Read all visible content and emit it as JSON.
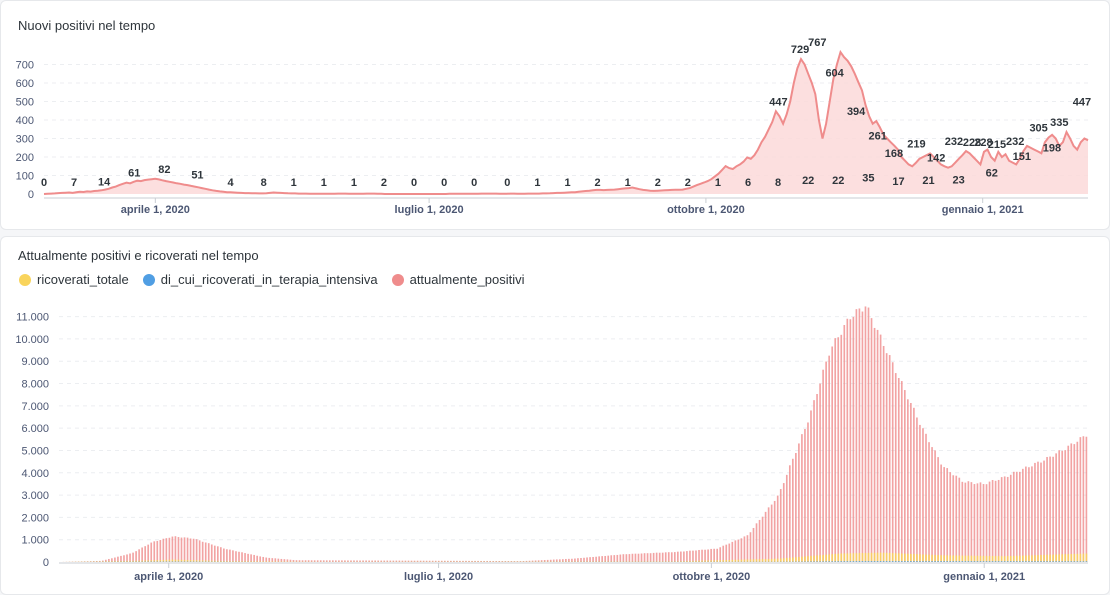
{
  "chart_data": [
    {
      "type": "area",
      "title": "Nuovi positivi nel tempo",
      "series": [
        {
          "name": "nuovi_positivi",
          "color": "#ef8c8c"
        }
      ],
      "y_ticks": [
        "0",
        "100",
        "200",
        "300",
        "400",
        "500",
        "600",
        "700"
      ],
      "ylim": [
        0,
        800
      ],
      "x_ticks": [
        "aprile 1, 2020",
        "luglio 1, 2020",
        "ottobre 1, 2020",
        "gennaio 1, 2021"
      ],
      "x_range": [
        "2020-02-24",
        "2021-02-05"
      ],
      "data_labels": [
        {
          "date": "2020-02-24",
          "value": 0
        },
        {
          "date": "2020-03-05",
          "value": 7
        },
        {
          "date": "2020-03-15",
          "value": 14
        },
        {
          "date": "2020-03-25",
          "value": 61
        },
        {
          "date": "2020-04-04",
          "value": 82
        },
        {
          "date": "2020-04-15",
          "value": 51
        },
        {
          "date": "2020-04-26",
          "value": 4
        },
        {
          "date": "2020-05-07",
          "value": 8
        },
        {
          "date": "2020-05-17",
          "value": 1
        },
        {
          "date": "2020-05-27",
          "value": 1
        },
        {
          "date": "2020-06-06",
          "value": 1
        },
        {
          "date": "2020-06-16",
          "value": 2
        },
        {
          "date": "2020-06-26",
          "value": 0
        },
        {
          "date": "2020-07-06",
          "value": 0
        },
        {
          "date": "2020-07-16",
          "value": 0
        },
        {
          "date": "2020-07-27",
          "value": 0
        },
        {
          "date": "2020-08-06",
          "value": 1
        },
        {
          "date": "2020-08-16",
          "value": 1
        },
        {
          "date": "2020-08-26",
          "value": 2
        },
        {
          "date": "2020-09-05",
          "value": 1
        },
        {
          "date": "2020-09-15",
          "value": 2
        },
        {
          "date": "2020-09-25",
          "value": 2
        },
        {
          "date": "2020-10-05",
          "value": 1
        },
        {
          "date": "2020-10-15",
          "value": 6
        },
        {
          "date": "2020-10-25",
          "value": 8
        },
        {
          "date": "2020-11-04",
          "value": 22
        },
        {
          "date": "2020-11-14",
          "value": 22
        },
        {
          "date": "2020-11-24",
          "value": 35
        },
        {
          "date": "2020-12-04",
          "value": 17
        },
        {
          "date": "2020-12-14",
          "value": 21
        },
        {
          "date": "2020-12-24",
          "value": 23
        },
        {
          "date": "2021-01-04",
          "value": 62
        },
        {
          "date": "2021-01-14",
          "value": 151
        },
        {
          "date": "2021-01-24",
          "value": 198
        },
        {
          "date": "2021-02-03",
          "value": 447
        }
      ],
      "peak_labels": [
        {
          "x_frac": 0.7035,
          "value": 447
        },
        {
          "x_frac": 0.7242,
          "value": 729
        },
        {
          "x_frac": 0.7407,
          "value": 767
        },
        {
          "x_frac": 0.7573,
          "value": 604
        },
        {
          "x_frac": 0.7779,
          "value": 394
        },
        {
          "x_frac": 0.7985,
          "value": 261
        },
        {
          "x_frac": 0.8141,
          "value": 168
        },
        {
          "x_frac": 0.8357,
          "value": 219
        },
        {
          "x_frac": 0.8546,
          "value": 142
        },
        {
          "x_frac": 0.8716,
          "value": 232
        },
        {
          "x_frac": 0.8889,
          "value": 228
        },
        {
          "x_frac": 0.8999,
          "value": 228
        },
        {
          "x_frac": 0.9128,
          "value": 215
        },
        {
          "x_frac": 0.9303,
          "value": 232
        },
        {
          "x_frac": 0.9527,
          "value": 305
        },
        {
          "x_frac": 0.9725,
          "value": 335
        }
      ],
      "values": [
        0,
        1,
        2,
        3,
        5,
        6,
        7,
        8,
        6,
        9,
        12,
        11,
        14,
        13,
        16,
        18,
        20,
        24,
        28,
        35,
        40,
        48,
        55,
        61,
        58,
        66,
        72,
        70,
        75,
        78,
        80,
        82,
        79,
        74,
        70,
        66,
        62,
        58,
        55,
        51,
        48,
        44,
        40,
        36,
        32,
        28,
        24,
        20,
        17,
        14,
        12,
        10,
        9,
        8,
        7,
        6,
        5,
        5,
        4,
        4,
        3,
        3,
        4,
        6,
        8,
        7,
        6,
        5,
        4,
        3,
        3,
        2,
        2,
        2,
        1,
        1,
        1,
        1,
        1,
        1,
        1,
        1,
        2,
        2,
        2,
        1,
        1,
        1,
        1,
        1,
        2,
        2,
        2,
        1,
        1,
        0,
        0,
        0,
        0,
        0,
        0,
        0,
        0,
        0,
        0,
        0,
        0,
        0,
        0,
        0,
        0,
        0,
        0,
        1,
        1,
        1,
        1,
        1,
        1,
        1,
        1,
        1,
        2,
        2,
        2,
        2,
        2,
        1,
        1,
        1,
        2,
        2,
        1,
        1,
        1,
        2,
        2,
        2,
        2,
        3,
        3,
        4,
        5,
        6,
        6,
        7,
        8,
        9,
        10,
        12,
        14,
        16,
        18,
        20,
        22,
        22,
        21,
        22,
        23,
        24,
        26,
        28,
        30,
        32,
        35,
        30,
        26,
        22,
        20,
        18,
        17,
        18,
        19,
        20,
        21,
        22,
        23,
        23,
        24,
        28,
        32,
        40,
        48,
        55,
        62,
        70,
        80,
        95,
        110,
        130,
        151,
        140,
        135,
        150,
        160,
        175,
        198,
        190,
        210,
        240,
        280,
        310,
        350,
        390,
        447,
        420,
        380,
        430,
        500,
        600,
        680,
        729,
        700,
        650,
        600,
        540,
        400,
        300,
        380,
        500,
        620,
        700,
        767,
        740,
        720,
        690,
        650,
        604,
        560,
        480,
        420,
        380,
        394,
        360,
        320,
        300,
        280,
        261,
        240,
        200,
        180,
        160,
        150,
        168,
        190,
        200,
        210,
        219,
        200,
        180,
        160,
        150,
        142,
        150,
        170,
        190,
        210,
        232,
        220,
        200,
        180,
        160,
        228,
        240,
        200,
        180,
        228,
        200,
        215,
        180,
        170,
        160,
        190,
        232,
        260,
        250,
        240,
        230,
        220,
        280,
        305,
        320,
        300,
        260,
        280,
        335,
        300,
        260,
        240,
        280,
        300,
        290
      ]
    },
    {
      "type": "bar",
      "title": "Attualmente positivi e ricoverati nel tempo",
      "series": [
        {
          "name": "ricoverati_totale",
          "color": "#f9d45c"
        },
        {
          "name": "di_cui_ricoverati_in_terapia_intensiva",
          "color": "#509ee3"
        },
        {
          "name": "attualmente_positivi",
          "color": "#ef8c8c"
        }
      ],
      "y_ticks": [
        "0",
        "1.000",
        "2.000",
        "3.000",
        "4.000",
        "5.000",
        "6.000",
        "7.000",
        "8.000",
        "9.000",
        "10.000",
        "11.000"
      ],
      "ylim": [
        0,
        11700
      ],
      "x_ticks": [
        "aprile 1, 2020",
        "luglio 1, 2020",
        "ottobre 1, 2020",
        "gennaio 1, 2021"
      ],
      "x_range": [
        "2020-02-24",
        "2021-02-05"
      ],
      "attualmente_positivi_key": [
        {
          "x_frac": 0.0,
          "value": 0
        },
        {
          "x_frac": 0.04,
          "value": 50
        },
        {
          "x_frac": 0.07,
          "value": 400
        },
        {
          "x_frac": 0.09,
          "value": 900
        },
        {
          "x_frac": 0.11,
          "value": 1150
        },
        {
          "x_frac": 0.13,
          "value": 1050
        },
        {
          "x_frac": 0.16,
          "value": 600
        },
        {
          "x_frac": 0.2,
          "value": 200
        },
        {
          "x_frac": 0.23,
          "value": 80
        },
        {
          "x_frac": 0.45,
          "value": 40
        },
        {
          "x_frac": 0.5,
          "value": 150
        },
        {
          "x_frac": 0.55,
          "value": 350
        },
        {
          "x_frac": 0.6,
          "value": 450
        },
        {
          "x_frac": 0.64,
          "value": 600
        },
        {
          "x_frac": 0.67,
          "value": 1200
        },
        {
          "x_frac": 0.7,
          "value": 3000
        },
        {
          "x_frac": 0.73,
          "value": 6500
        },
        {
          "x_frac": 0.75,
          "value": 9500
        },
        {
          "x_frac": 0.77,
          "value": 11000
        },
        {
          "x_frac": 0.785,
          "value": 11500
        },
        {
          "x_frac": 0.8,
          "value": 10000
        },
        {
          "x_frac": 0.82,
          "value": 8000
        },
        {
          "x_frac": 0.84,
          "value": 6000
        },
        {
          "x_frac": 0.86,
          "value": 4300
        },
        {
          "x_frac": 0.88,
          "value": 3600
        },
        {
          "x_frac": 0.9,
          "value": 3500
        },
        {
          "x_frac": 0.92,
          "value": 3800
        },
        {
          "x_frac": 0.94,
          "value": 4200
        },
        {
          "x_frac": 0.96,
          "value": 4600
        },
        {
          "x_frac": 0.98,
          "value": 5100
        },
        {
          "x_frac": 1.0,
          "value": 5700
        }
      ],
      "ricoverati_totale_key": [
        {
          "x_frac": 0.0,
          "value": 0
        },
        {
          "x_frac": 0.08,
          "value": 60
        },
        {
          "x_frac": 0.11,
          "value": 110
        },
        {
          "x_frac": 0.16,
          "value": 40
        },
        {
          "x_frac": 0.25,
          "value": 10
        },
        {
          "x_frac": 0.6,
          "value": 30
        },
        {
          "x_frac": 0.7,
          "value": 150
        },
        {
          "x_frac": 0.76,
          "value": 380
        },
        {
          "x_frac": 0.8,
          "value": 420
        },
        {
          "x_frac": 0.86,
          "value": 300
        },
        {
          "x_frac": 0.92,
          "value": 260
        },
        {
          "x_frac": 1.0,
          "value": 380
        }
      ],
      "terapia_intensiva_key": [
        {
          "x_frac": 0.0,
          "value": 0
        },
        {
          "x_frac": 0.11,
          "value": 20
        },
        {
          "x_frac": 0.2,
          "value": 2
        },
        {
          "x_frac": 0.7,
          "value": 10
        },
        {
          "x_frac": 0.78,
          "value": 40
        },
        {
          "x_frac": 1.0,
          "value": 30
        }
      ]
    }
  ]
}
